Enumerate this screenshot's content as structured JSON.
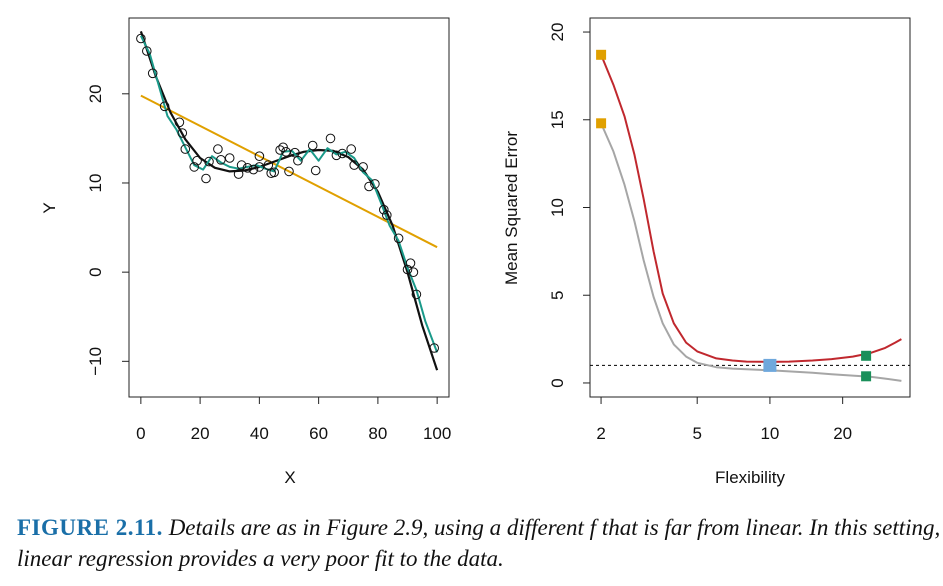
{
  "chart_data": [
    {
      "type": "scatter",
      "xlabel": "X",
      "ylabel": "Y",
      "xlim": [
        -4,
        104
      ],
      "ylim": [
        -14,
        28.5
      ],
      "xticks": [
        0,
        20,
        40,
        60,
        80,
        100
      ],
      "yticks": [
        -10,
        0,
        10,
        20
      ],
      "points": [
        [
          0,
          26.2
        ],
        [
          2,
          24.8
        ],
        [
          4,
          22.3
        ],
        [
          8,
          18.6
        ],
        [
          13,
          16.8
        ],
        [
          14,
          15.6
        ],
        [
          15,
          13.8
        ],
        [
          18,
          11.8
        ],
        [
          19,
          12.5
        ],
        [
          22,
          10.5
        ],
        [
          23,
          12.4
        ],
        [
          26,
          13.8
        ],
        [
          27,
          12.6
        ],
        [
          30,
          12.8
        ],
        [
          33,
          11.0
        ],
        [
          34,
          12.0
        ],
        [
          36,
          11.7
        ],
        [
          38,
          11.5
        ],
        [
          40,
          13.0
        ],
        [
          40,
          11.8
        ],
        [
          43,
          12.0
        ],
        [
          44,
          11.1
        ],
        [
          45,
          11.2
        ],
        [
          47,
          13.7
        ],
        [
          48,
          14.0
        ],
        [
          49,
          13.5
        ],
        [
          50,
          11.3
        ],
        [
          52,
          13.4
        ],
        [
          53,
          12.5
        ],
        [
          58,
          14.2
        ],
        [
          59,
          11.4
        ],
        [
          64,
          15.0
        ],
        [
          66,
          13.1
        ],
        [
          68,
          13.3
        ],
        [
          71,
          13.8
        ],
        [
          72,
          12.0
        ],
        [
          75,
          11.8
        ],
        [
          77,
          9.6
        ],
        [
          79,
          9.9
        ],
        [
          82,
          7.0
        ],
        [
          83,
          6.4
        ],
        [
          87,
          3.8
        ],
        [
          90,
          0.3
        ],
        [
          91,
          1.0
        ],
        [
          92,
          0.0
        ],
        [
          93,
          -2.5
        ],
        [
          99,
          -8.5
        ]
      ],
      "series": [
        {
          "color": "#e0a000",
          "x": [
            0,
            100
          ],
          "y": [
            19.8,
            2.8
          ]
        },
        {
          "color": "#111111",
          "x": [
            0,
            5,
            10,
            15,
            20,
            25,
            30,
            35,
            40,
            45,
            50,
            55,
            60,
            65,
            70,
            75,
            80,
            85,
            90,
            95,
            100
          ],
          "y": [
            27.0,
            22.0,
            17.9,
            14.9,
            12.8,
            11.7,
            11.3,
            11.4,
            11.8,
            12.4,
            13.0,
            13.5,
            13.7,
            13.6,
            12.9,
            11.5,
            9.0,
            5.2,
            0.0,
            -6.0,
            -11.0
          ]
        },
        {
          "color": "#1a9a8a",
          "x": [
            0,
            3,
            6,
            9,
            12,
            15,
            18,
            21,
            24,
            27,
            30,
            33,
            36,
            39,
            42,
            45,
            48,
            51,
            54,
            57,
            60,
            63,
            66,
            69,
            72,
            75,
            78,
            81,
            84,
            87,
            90,
            93,
            96,
            100
          ],
          "y": [
            26.5,
            24.5,
            21.0,
            17.5,
            16.0,
            14.0,
            12.0,
            11.5,
            13.0,
            12.3,
            11.8,
            11.6,
            11.8,
            12.0,
            11.6,
            11.3,
            13.5,
            13.6,
            12.5,
            13.8,
            12.5,
            13.9,
            13.2,
            13.5,
            12.8,
            11.2,
            10.3,
            7.8,
            5.2,
            3.5,
            0.5,
            -2.0,
            -5.5,
            -9.0
          ]
        }
      ]
    },
    {
      "type": "line",
      "xlabel": "Flexibility",
      "ylabel": "Mean Squared Error",
      "x_scale": "log",
      "xlim": [
        1.8,
        38
      ],
      "ylim": [
        -0.8,
        20.8
      ],
      "xticks": [
        2,
        5,
        10,
        20
      ],
      "yticks": [
        0,
        5,
        10,
        15,
        20
      ],
      "hline": {
        "y": 1.0,
        "style": "dashed",
        "color": "#000000"
      },
      "series": [
        {
          "color": "#c0282e",
          "x": [
            2,
            2.25,
            2.5,
            2.75,
            3,
            3.3,
            3.6,
            4,
            4.5,
            5,
            6,
            7,
            8,
            10,
            12,
            15,
            18,
            22,
            26,
            30,
            33,
            35
          ],
          "y": [
            18.7,
            17.0,
            15.2,
            13.0,
            10.5,
            7.5,
            5.1,
            3.4,
            2.3,
            1.8,
            1.4,
            1.28,
            1.22,
            1.2,
            1.22,
            1.28,
            1.36,
            1.5,
            1.7,
            2.0,
            2.3,
            2.5
          ]
        },
        {
          "color": "#a6a6a6",
          "x": [
            2,
            2.25,
            2.5,
            2.75,
            3,
            3.3,
            3.6,
            4,
            4.5,
            5,
            6,
            7,
            8,
            10,
            12,
            15,
            18,
            22,
            26,
            30,
            35
          ],
          "y": [
            14.8,
            13.2,
            11.3,
            9.2,
            7.0,
            4.9,
            3.4,
            2.2,
            1.5,
            1.15,
            0.9,
            0.82,
            0.78,
            0.72,
            0.66,
            0.58,
            0.5,
            0.42,
            0.35,
            0.25,
            0.12
          ]
        }
      ],
      "markers": [
        {
          "x": 2,
          "y": 18.7,
          "color": "#e0a000"
        },
        {
          "x": 2,
          "y": 14.8,
          "color": "#e0a000"
        },
        {
          "x": 10,
          "y": 1.0,
          "color": "#6fa8dc"
        },
        {
          "x": 25,
          "y": 1.55,
          "color": "#1a8f5a"
        },
        {
          "x": 25,
          "y": 0.38,
          "color": "#1a8f5a"
        }
      ]
    }
  ],
  "caption": {
    "label": "FIGURE 2.11.",
    "text": "Details are as in Figure 2.9, using a different f that is far from linear. In this setting, linear regression provides a very poor fit to the data."
  }
}
